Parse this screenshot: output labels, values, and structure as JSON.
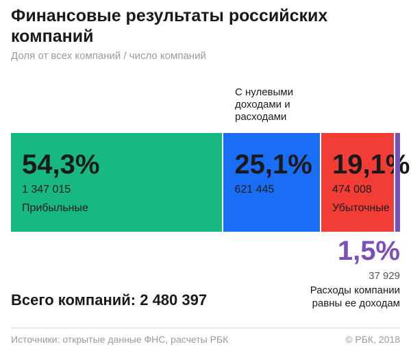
{
  "header": {
    "title": "Финансовые результаты российских компаний",
    "subtitle": "Доля от всех компаний / число компаний"
  },
  "colors": {
    "profitable": "#17b882",
    "zero": "#1a6ef5",
    "loss": "#f23c36",
    "equal": "#7b4fb8"
  },
  "annotations": {
    "zero_label": "С нулевыми доходами и расходами"
  },
  "total": "Всего компаний: 2 480 397",
  "footer": {
    "source": "Источники: открытые данные ФНС, расчеты РБК",
    "copyright": "© РБК, 2018"
  },
  "chart_data": {
    "type": "bar",
    "orientation": "horizontal-stacked",
    "unit": "%",
    "segments": [
      {
        "share": 54.3,
        "share_label": "54,3%",
        "count": "1 347 015",
        "label": "Прибыльные"
      },
      {
        "share": 25.1,
        "share_label": "25,1%",
        "count": "621 445",
        "label": ""
      },
      {
        "share": 19.1,
        "share_label": "19,1%",
        "count": "474 008",
        "label": "Убыточные"
      },
      {
        "share": 1.5,
        "share_label": "1,5%",
        "count": "37 929",
        "label": "Расходы компании равны ее доходам"
      }
    ]
  }
}
